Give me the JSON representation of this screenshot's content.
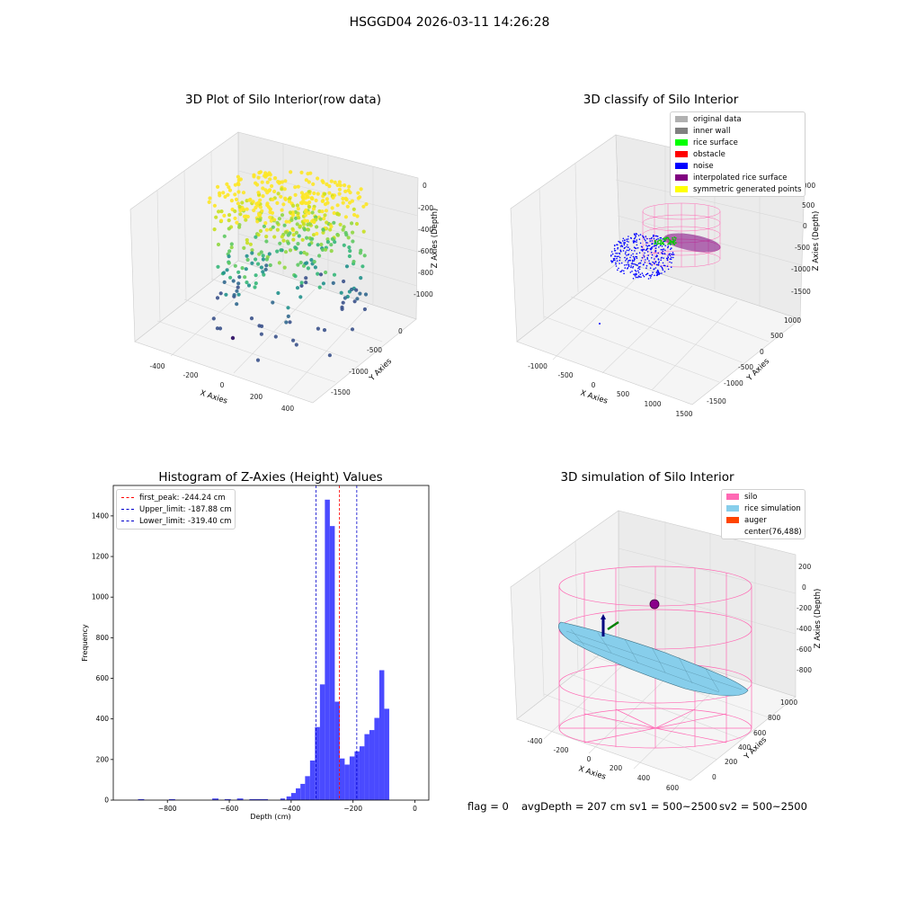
{
  "suptitle": "HSGGD04 2026-03-11 14:26:28",
  "colors": {
    "bar": "#4a4aff",
    "peak": "#ff0000",
    "limit": "#0000cc",
    "silo": "#ff69b4",
    "rice_sim": "#87ceeb",
    "auger": "#ff4500"
  },
  "chart_data": [
    {
      "type": "scatter",
      "title": "3D Plot of Silo Interior(row data)",
      "xlabel": "X Axies",
      "ylabel": "Y Axies",
      "zlabel": "Z Axies (Depth)",
      "x_ticks": [
        "-400",
        "-200",
        "0",
        "200",
        "400"
      ],
      "y_ticks": [
        "0",
        "-500",
        "-1000",
        "-1500"
      ],
      "z_ticks": [
        "0",
        "-200",
        "-400",
        "-600",
        "-800",
        "-1000"
      ],
      "colormap": "viridis"
    },
    {
      "type": "scatter",
      "title": "3D classify of Silo Interior",
      "xlabel": "X Axies",
      "ylabel": "Y Axies",
      "zlabel": "Z Axies (Depth)",
      "x_ticks": [
        "-1000",
        "-500",
        "0",
        "500",
        "1000",
        "1500"
      ],
      "y_ticks": [
        "1000",
        "500",
        "0",
        "-500",
        "-1000",
        "-1500"
      ],
      "z_ticks": [
        "1000",
        "500",
        "0",
        "-500",
        "-1000",
        "-1500"
      ],
      "legend": [
        {
          "label": "original data",
          "color": "#b0b0b0"
        },
        {
          "label": "inner wall",
          "color": "#808080"
        },
        {
          "label": "rice surface",
          "color": "#00ff00"
        },
        {
          "label": "obstacle",
          "color": "#ff0000"
        },
        {
          "label": "noise",
          "color": "#0000ff"
        },
        {
          "label": "interpolated rice surface",
          "color": "#800080"
        },
        {
          "label": "symmetric generated points",
          "color": "#ffff00"
        }
      ],
      "legend_position": "top-right"
    },
    {
      "type": "bar",
      "title": "Histogram of Z-Axies (Height) Values",
      "xlabel": "Depth (cm)",
      "ylabel": "Frequency",
      "xlim": [
        -975,
        45
      ],
      "ylim": [
        0,
        1550
      ],
      "x_ticks": [
        -800,
        -600,
        -400,
        -200,
        0
      ],
      "y_ticks": [
        0,
        200,
        400,
        600,
        800,
        1000,
        1200,
        1400
      ],
      "bins": [
        {
          "x0": -895,
          "x1": -875,
          "v": 5
        },
        {
          "x0": -795,
          "x1": -775,
          "v": 5
        },
        {
          "x0": -655,
          "x1": -635,
          "v": 8
        },
        {
          "x0": -615,
          "x1": -595,
          "v": 5
        },
        {
          "x0": -575,
          "x1": -555,
          "v": 8
        },
        {
          "x0": -535,
          "x1": -475,
          "v": 5
        },
        {
          "x0": -435,
          "x1": -420,
          "v": 8
        },
        {
          "x0": -415,
          "x1": -400,
          "v": 18
        },
        {
          "x0": -400,
          "x1": -385,
          "v": 35
        },
        {
          "x0": -385,
          "x1": -370,
          "v": 58
        },
        {
          "x0": -370,
          "x1": -355,
          "v": 80
        },
        {
          "x0": -355,
          "x1": -339,
          "v": 118
        },
        {
          "x0": -339,
          "x1": -323,
          "v": 195
        },
        {
          "x0": -323,
          "x1": -307,
          "v": 360
        },
        {
          "x0": -307,
          "x1": -291,
          "v": 570
        },
        {
          "x0": -291,
          "x1": -275,
          "v": 1480
        },
        {
          "x0": -275,
          "x1": -259,
          "v": 1350
        },
        {
          "x0": -259,
          "x1": -243,
          "v": 485
        },
        {
          "x0": -243,
          "x1": -227,
          "v": 205
        },
        {
          "x0": -227,
          "x1": -211,
          "v": 175
        },
        {
          "x0": -211,
          "x1": -195,
          "v": 215
        },
        {
          "x0": -195,
          "x1": -179,
          "v": 240
        },
        {
          "x0": -179,
          "x1": -163,
          "v": 265
        },
        {
          "x0": -163,
          "x1": -147,
          "v": 325
        },
        {
          "x0": -147,
          "x1": -131,
          "v": 345
        },
        {
          "x0": -131,
          "x1": -115,
          "v": 405
        },
        {
          "x0": -115,
          "x1": -99,
          "v": 640
        },
        {
          "x0": -99,
          "x1": -83,
          "v": 450
        }
      ],
      "vlines": [
        {
          "label": "first_peak: -244.24 cm",
          "x": -244.24,
          "color": "#ff0000"
        },
        {
          "label": "Upper_limit: -187.88 cm",
          "x": -187.88,
          "color": "#0000cc"
        },
        {
          "label": "Lower_limit: -319.40 cm",
          "x": -319.4,
          "color": "#0000cc"
        }
      ],
      "legend_position": "top-left"
    },
    {
      "type": "surface",
      "title": "3D simulation of Silo Interior",
      "xlabel": "X Axies",
      "ylabel": "Y Axies",
      "zlabel": "Z Axies (Depth)",
      "x_ticks": [
        "-400",
        "-200",
        "0",
        "200",
        "400",
        "600"
      ],
      "y_ticks": [
        "1000",
        "800",
        "600",
        "400",
        "200",
        "0"
      ],
      "z_ticks": [
        "200",
        "0",
        "-200",
        "-400",
        "-600",
        "-800"
      ],
      "legend": [
        {
          "label": "silo",
          "color": "#ff69b4"
        },
        {
          "label": "rice simulation",
          "color": "#87ceeb"
        },
        {
          "label": "auger",
          "color": "#ff4500"
        },
        {
          "label": "center(76,488)",
          "color": ""
        }
      ],
      "legend_position": "top-right"
    }
  ],
  "footer": {
    "flag": "flag = 0",
    "avg": "avgDepth = 207 cm",
    "sv1": "sv1 = 500~2500",
    "sv2": "sv2 = 500~2500"
  }
}
